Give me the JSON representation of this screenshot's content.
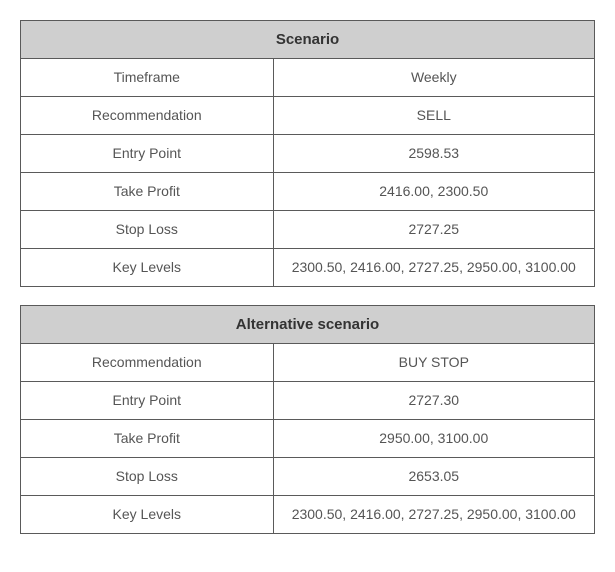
{
  "scenario": {
    "title": "Scenario",
    "header_bg": "#cfcfcf",
    "header_color": "#333333",
    "border_color": "#5a5a5a",
    "text_color": "#555555",
    "rows": [
      {
        "label": "Timeframe",
        "value": "Weekly"
      },
      {
        "label": "Recommendation",
        "value": "SELL"
      },
      {
        "label": "Entry Point",
        "value": "2598.53"
      },
      {
        "label": "Take Profit",
        "value": "2416.00, 2300.50"
      },
      {
        "label": "Stop Loss",
        "value": "2727.25"
      },
      {
        "label": "Key Levels",
        "value": "2300.50, 2416.00, 2727.25, 2950.00, 3100.00"
      }
    ]
  },
  "alternative": {
    "title": "Alternative scenario",
    "header_bg": "#cfcfcf",
    "header_color": "#333333",
    "border_color": "#5a5a5a",
    "text_color": "#555555",
    "rows": [
      {
        "label": "Recommendation",
        "value": "BUY STOP"
      },
      {
        "label": "Entry Point",
        "value": "2727.30"
      },
      {
        "label": "Take Profit",
        "value": "2950.00, 3100.00"
      },
      {
        "label": "Stop Loss",
        "value": "2653.05"
      },
      {
        "label": "Key Levels",
        "value": "2300.50, 2416.00, 2727.25, 2950.00, 3100.00"
      }
    ]
  }
}
